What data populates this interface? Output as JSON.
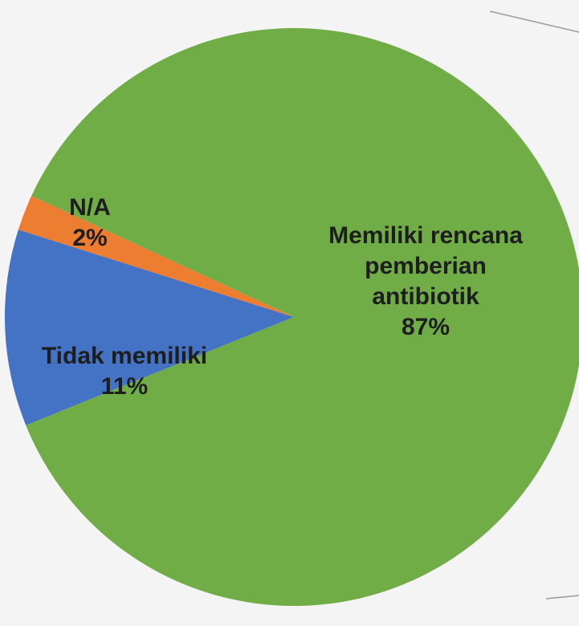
{
  "chart_data": {
    "type": "pie",
    "categories": [
      "Memiliki rencana pemberian antibiotik",
      "Tidak memiliki",
      "N/A"
    ],
    "values": [
      87,
      11,
      2
    ],
    "value_labels": [
      "87%",
      "11%",
      "2%"
    ],
    "colors": [
      "#70ad47",
      "#4472c4",
      "#ed7d31"
    ]
  }
}
